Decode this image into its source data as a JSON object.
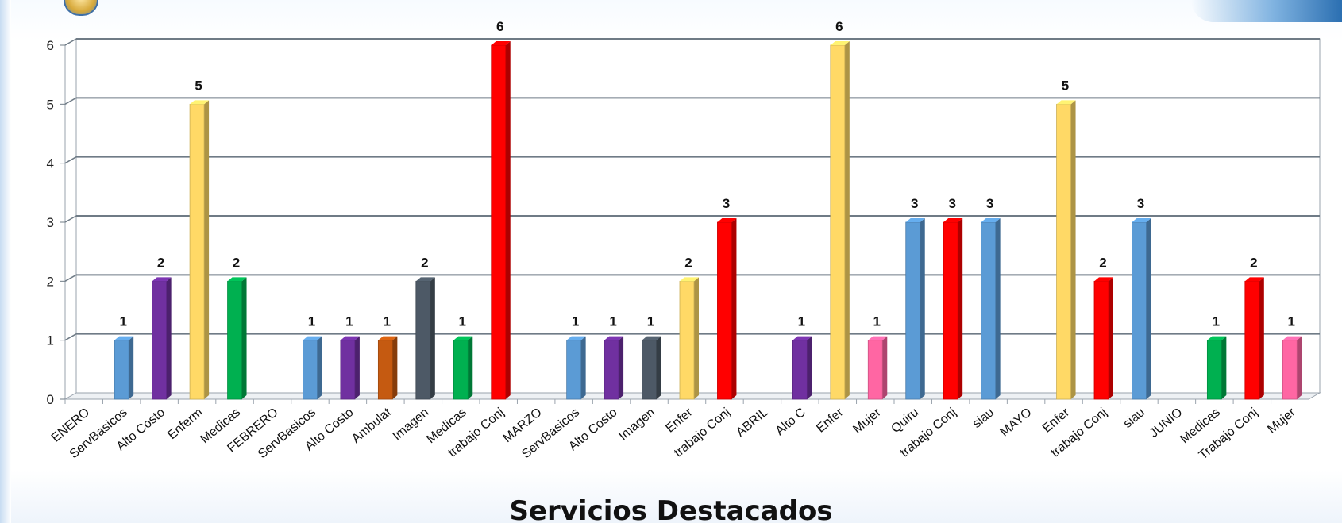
{
  "chart_data": {
    "type": "bar",
    "title": "Servicios Destacados",
    "ylim": [
      0,
      6
    ],
    "yticks": [
      0,
      1,
      2,
      3,
      4,
      5,
      6
    ],
    "grid": true,
    "categories": [
      {
        "label": "ENERO",
        "value": null,
        "color": ""
      },
      {
        "label": "ServBasicos",
        "value": 1,
        "color": "#5b9bd5"
      },
      {
        "label": "Alto Costo",
        "value": 2,
        "color": "#7030a0"
      },
      {
        "label": "Enferm",
        "value": 5,
        "color": "#ffd966"
      },
      {
        "label": "Medicas",
        "value": 2,
        "color": "#00b050"
      },
      {
        "label": "FEBRERO",
        "value": null,
        "color": ""
      },
      {
        "label": "ServBasicos",
        "value": 1,
        "color": "#5b9bd5"
      },
      {
        "label": "Alto Costo",
        "value": 1,
        "color": "#7030a0"
      },
      {
        "label": "Ambulat",
        "value": 1,
        "color": "#c55a11"
      },
      {
        "label": "Imagen",
        "value": 2,
        "color": "#4d5966"
      },
      {
        "label": "Medicas",
        "value": 1,
        "color": "#00b050"
      },
      {
        "label": "trabajo Conj",
        "value": 6,
        "color": "#ff0000"
      },
      {
        "label": "MARZO",
        "value": null,
        "color": ""
      },
      {
        "label": "ServBasicos",
        "value": 1,
        "color": "#5b9bd5"
      },
      {
        "label": "Alto Costo",
        "value": 1,
        "color": "#7030a0"
      },
      {
        "label": "Imagen",
        "value": 1,
        "color": "#4d5966"
      },
      {
        "label": "Enfer",
        "value": 2,
        "color": "#ffd966"
      },
      {
        "label": "trabajo Conj",
        "value": 3,
        "color": "#ff0000"
      },
      {
        "label": "ABRIL",
        "value": null,
        "color": ""
      },
      {
        "label": "Alto C",
        "value": 1,
        "color": "#7030a0"
      },
      {
        "label": "Enfer",
        "value": 6,
        "color": "#ffd966"
      },
      {
        "label": "Mujer",
        "value": 1,
        "color": "#ff66a3"
      },
      {
        "label": "Quiru",
        "value": 3,
        "color": "#5b9bd5"
      },
      {
        "label": "trabajo Conj",
        "value": 3,
        "color": "#ff0000"
      },
      {
        "label": "siau",
        "value": 3,
        "color": "#5b9bd5"
      },
      {
        "label": "MAYO",
        "value": null,
        "color": ""
      },
      {
        "label": "Enfer",
        "value": 5,
        "color": "#ffd966"
      },
      {
        "label": "trabajo Conj",
        "value": 2,
        "color": "#ff0000"
      },
      {
        "label": "siau",
        "value": 3,
        "color": "#5b9bd5"
      },
      {
        "label": "JUNIO",
        "value": null,
        "color": ""
      },
      {
        "label": "Medicas",
        "value": 1,
        "color": "#00b050"
      },
      {
        "label": "Trabajo Conj",
        "value": 2,
        "color": "#ff0000"
      },
      {
        "label": "Mujer",
        "value": 1,
        "color": "#ff66a3"
      }
    ]
  }
}
